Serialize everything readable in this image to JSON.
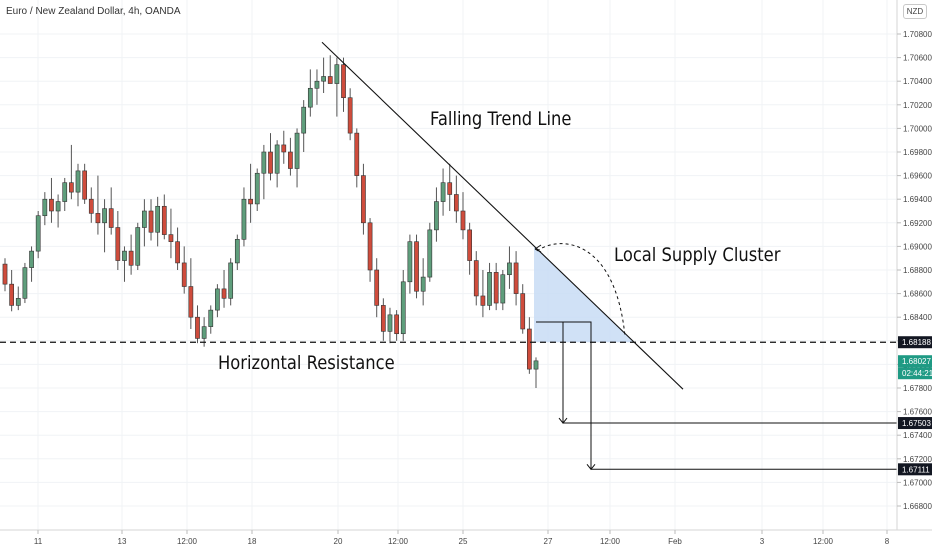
{
  "header": {
    "title": "Euro / New Zealand Dollar, 4h, OANDA",
    "currency": "NZD"
  },
  "annotations": {
    "trend_line": "Falling Trend Line",
    "supply_cluster": "Local Supply Cluster",
    "horizontal_resistance": "Horizontal Resistance"
  },
  "colors": {
    "up": "#5f9e7c",
    "down": "#cf4c3c",
    "zone": "#c8dcf5",
    "last_price": "#1f9a84",
    "tag": "#131722"
  },
  "chart_data": {
    "type": "candlestick",
    "symbol": "EURNZD",
    "timeframe": "4h",
    "y_ticks": [
      "1.70800",
      "1.70600",
      "1.70400",
      "1.70200",
      "1.70000",
      "1.69800",
      "1.69600",
      "1.69400",
      "1.69200",
      "1.69000",
      "1.68800",
      "1.68600",
      "1.68400",
      "1.68200",
      "1.68000",
      "1.67800",
      "1.67600",
      "1.67400",
      "1.67200",
      "1.67000",
      "1.66800"
    ],
    "x_ticks": [
      "11",
      "13",
      "12:00",
      "18",
      "20",
      "12:00",
      "25",
      "27",
      "12:00",
      "Feb",
      "3",
      "12:00",
      "8"
    ],
    "price_tags": {
      "resistance": "1.68188",
      "last_price": "1.68027",
      "countdown": "02:44:21",
      "target_1": "1.67503",
      "target_2": "1.67111"
    },
    "levels": {
      "resistance": 1.68188,
      "target_1": 1.67503,
      "target_2": 1.67111
    },
    "trend_line": {
      "from": [
        1.7073
      ],
      "to": [
        1.6779
      ]
    },
    "candles": [
      [
        1.6885,
        1.689,
        1.6862,
        1.6868
      ],
      [
        1.6868,
        1.688,
        1.6845,
        1.685
      ],
      [
        1.685,
        1.6866,
        1.6846,
        1.6856
      ],
      [
        1.6856,
        1.6886,
        1.6852,
        1.6882
      ],
      [
        1.6882,
        1.69,
        1.687,
        1.6896
      ],
      [
        1.6896,
        1.693,
        1.689,
        1.6926
      ],
      [
        1.6926,
        1.6946,
        1.6918,
        1.694
      ],
      [
        1.694,
        1.6958,
        1.692,
        1.693
      ],
      [
        1.693,
        1.6944,
        1.6916,
        1.6938
      ],
      [
        1.6938,
        1.6958,
        1.693,
        1.6954
      ],
      [
        1.6954,
        1.6986,
        1.694,
        1.6946
      ],
      [
        1.6946,
        1.697,
        1.6934,
        1.6964
      ],
      [
        1.6964,
        1.697,
        1.6936,
        1.694
      ],
      [
        1.694,
        1.695,
        1.692,
        1.6928
      ],
      [
        1.6928,
        1.696,
        1.691,
        1.692
      ],
      [
        1.692,
        1.694,
        1.6895,
        1.6932
      ],
      [
        1.6932,
        1.695,
        1.691,
        1.6916
      ],
      [
        1.6916,
        1.693,
        1.688,
        1.6888
      ],
      [
        1.6888,
        1.69,
        1.687,
        1.6896
      ],
      [
        1.6896,
        1.691,
        1.6876,
        1.6884
      ],
      [
        1.6884,
        1.692,
        1.688,
        1.6916
      ],
      [
        1.6916,
        1.694,
        1.69,
        1.693
      ],
      [
        1.693,
        1.694,
        1.6905,
        1.6912
      ],
      [
        1.6912,
        1.6942,
        1.69,
        1.6934
      ],
      [
        1.6934,
        1.6944,
        1.6906,
        1.691
      ],
      [
        1.691,
        1.6932,
        1.689,
        1.6904
      ],
      [
        1.6904,
        1.6916,
        1.688,
        1.6886
      ],
      [
        1.6886,
        1.69,
        1.686,
        1.6866
      ],
      [
        1.6866,
        1.689,
        1.683,
        1.684
      ],
      [
        1.684,
        1.685,
        1.6818,
        1.6822
      ],
      [
        1.6822,
        1.684,
        1.6815,
        1.6832
      ],
      [
        1.6832,
        1.685,
        1.6826,
        1.6846
      ],
      [
        1.6846,
        1.6868,
        1.684,
        1.6864
      ],
      [
        1.6864,
        1.688,
        1.6848,
        1.6856
      ],
      [
        1.6856,
        1.689,
        1.685,
        1.6886
      ],
      [
        1.6886,
        1.691,
        1.688,
        1.6906
      ],
      [
        1.6906,
        1.695,
        1.69,
        1.694
      ],
      [
        1.694,
        1.697,
        1.692,
        1.6936
      ],
      [
        1.6936,
        1.6966,
        1.693,
        1.6962
      ],
      [
        1.6962,
        1.6986,
        1.694,
        1.698
      ],
      [
        1.698,
        1.6996,
        1.6956,
        1.6962
      ],
      [
        1.6962,
        1.699,
        1.695,
        1.6986
      ],
      [
        1.6986,
        1.6998,
        1.697,
        1.698
      ],
      [
        1.698,
        1.6992,
        1.696,
        1.6966
      ],
      [
        1.6966,
        1.7,
        1.695,
        1.6996
      ],
      [
        1.6996,
        1.7024,
        1.698,
        1.7018
      ],
      [
        1.7018,
        1.705,
        1.701,
        1.7034
      ],
      [
        1.7034,
        1.705,
        1.702,
        1.704
      ],
      [
        1.704,
        1.706,
        1.703,
        1.7044
      ],
      [
        1.7044,
        1.7062,
        1.704,
        1.7038
      ],
      [
        1.7038,
        1.706,
        1.701,
        1.7054
      ],
      [
        1.7054,
        1.706,
        1.7014,
        1.7026
      ],
      [
        1.7026,
        1.7034,
        1.699,
        1.6996
      ],
      [
        1.6996,
        1.7,
        1.695,
        1.696
      ],
      [
        1.696,
        1.697,
        1.691,
        1.692
      ],
      [
        1.692,
        1.6924,
        1.687,
        1.688
      ],
      [
        1.688,
        1.689,
        1.684,
        1.685
      ],
      [
        1.685,
        1.6856,
        1.682,
        1.6828
      ],
      [
        1.6828,
        1.6848,
        1.6818,
        1.6842
      ],
      [
        1.6842,
        1.6846,
        1.682,
        1.6826
      ],
      [
        1.6826,
        1.688,
        1.682,
        1.687
      ],
      [
        1.687,
        1.691,
        1.686,
        1.6904
      ],
      [
        1.6904,
        1.691,
        1.6856,
        1.6862
      ],
      [
        1.6862,
        1.689,
        1.685,
        1.6874
      ],
      [
        1.6874,
        1.692,
        1.687,
        1.6914
      ],
      [
        1.6914,
        1.695,
        1.6904,
        1.6938
      ],
      [
        1.6938,
        1.6966,
        1.6926,
        1.6954
      ],
      [
        1.6954,
        1.697,
        1.693,
        1.6944
      ],
      [
        1.6944,
        1.696,
        1.692,
        1.693
      ],
      [
        1.693,
        1.6946,
        1.6906,
        1.6914
      ],
      [
        1.6914,
        1.692,
        1.6876,
        1.6888
      ],
      [
        1.6888,
        1.6896,
        1.685,
        1.6858
      ],
      [
        1.6858,
        1.688,
        1.684,
        1.685
      ],
      [
        1.685,
        1.6886,
        1.6846,
        1.6878
      ],
      [
        1.6878,
        1.6886,
        1.6846,
        1.6852
      ],
      [
        1.6852,
        1.688,
        1.6846,
        1.6876
      ],
      [
        1.6876,
        1.69,
        1.6864,
        1.6886
      ],
      [
        1.6886,
        1.6896,
        1.685,
        1.686
      ],
      [
        1.686,
        1.6868,
        1.6826,
        1.683
      ],
      [
        1.683,
        1.684,
        1.6792,
        1.6796
      ],
      [
        1.6796,
        1.6806,
        1.678,
        1.6803
      ]
    ]
  }
}
